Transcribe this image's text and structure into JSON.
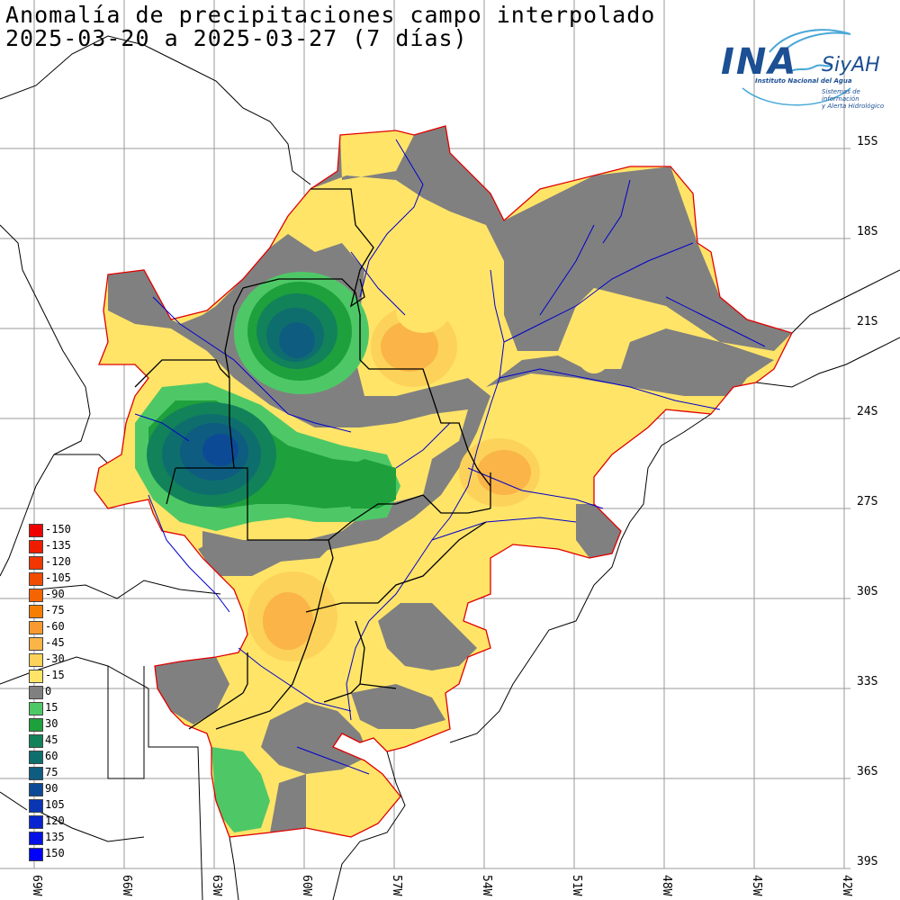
{
  "header": {
    "title_line1": "Anomalía de precipitaciones campo interpolado",
    "title_line2": "2025-03-20 a 2025-03-27 (7 días)"
  },
  "logo": {
    "name": "INA",
    "brand": "SiyAH",
    "subtitle": "Instituto Nacional del Agua",
    "tagline_line1": "Sistemas de información",
    "tagline_line2": "y Alerta Hidrológico",
    "color": "#1c4f93"
  },
  "lat_labels": [
    "15S",
    "18S",
    "21S",
    "24S",
    "27S",
    "30S",
    "33S",
    "36S",
    "39S"
  ],
  "lon_labels": [
    "69W",
    "66W",
    "63W",
    "60W",
    "57W",
    "54W",
    "51W",
    "48W",
    "45W",
    "42W"
  ],
  "legend": [
    {
      "label": "-150",
      "color": "#ee0000"
    },
    {
      "label": "-135",
      "color": "#f01c00"
    },
    {
      "label": "-120",
      "color": "#f23600"
    },
    {
      "label": "-105",
      "color": "#f24c00"
    },
    {
      "label": "-90",
      "color": "#f46400"
    },
    {
      "label": "-75",
      "color": "#f67e00"
    },
    {
      "label": "-60",
      "color": "#f89a30"
    },
    {
      "label": "-45",
      "color": "#fab448"
    },
    {
      "label": "-30",
      "color": "#fcd25a"
    },
    {
      "label": "-15",
      "color": "#ffe468"
    },
    {
      "label": "0",
      "color": "#808080"
    },
    {
      "label": "15",
      "color": "#4ec866"
    },
    {
      "label": "30",
      "color": "#1ea03c"
    },
    {
      "label": "45",
      "color": "#12825a"
    },
    {
      "label": "60",
      "color": "#0e6e6e"
    },
    {
      "label": "75",
      "color": "#0e5c80"
    },
    {
      "label": "90",
      "color": "#0c4a96"
    },
    {
      "label": "105",
      "color": "#0a36b4"
    },
    {
      "label": "120",
      "color": "#0824d0"
    },
    {
      "label": "135",
      "color": "#0412e6"
    },
    {
      "label": "150",
      "color": "#0000ff"
    }
  ]
}
